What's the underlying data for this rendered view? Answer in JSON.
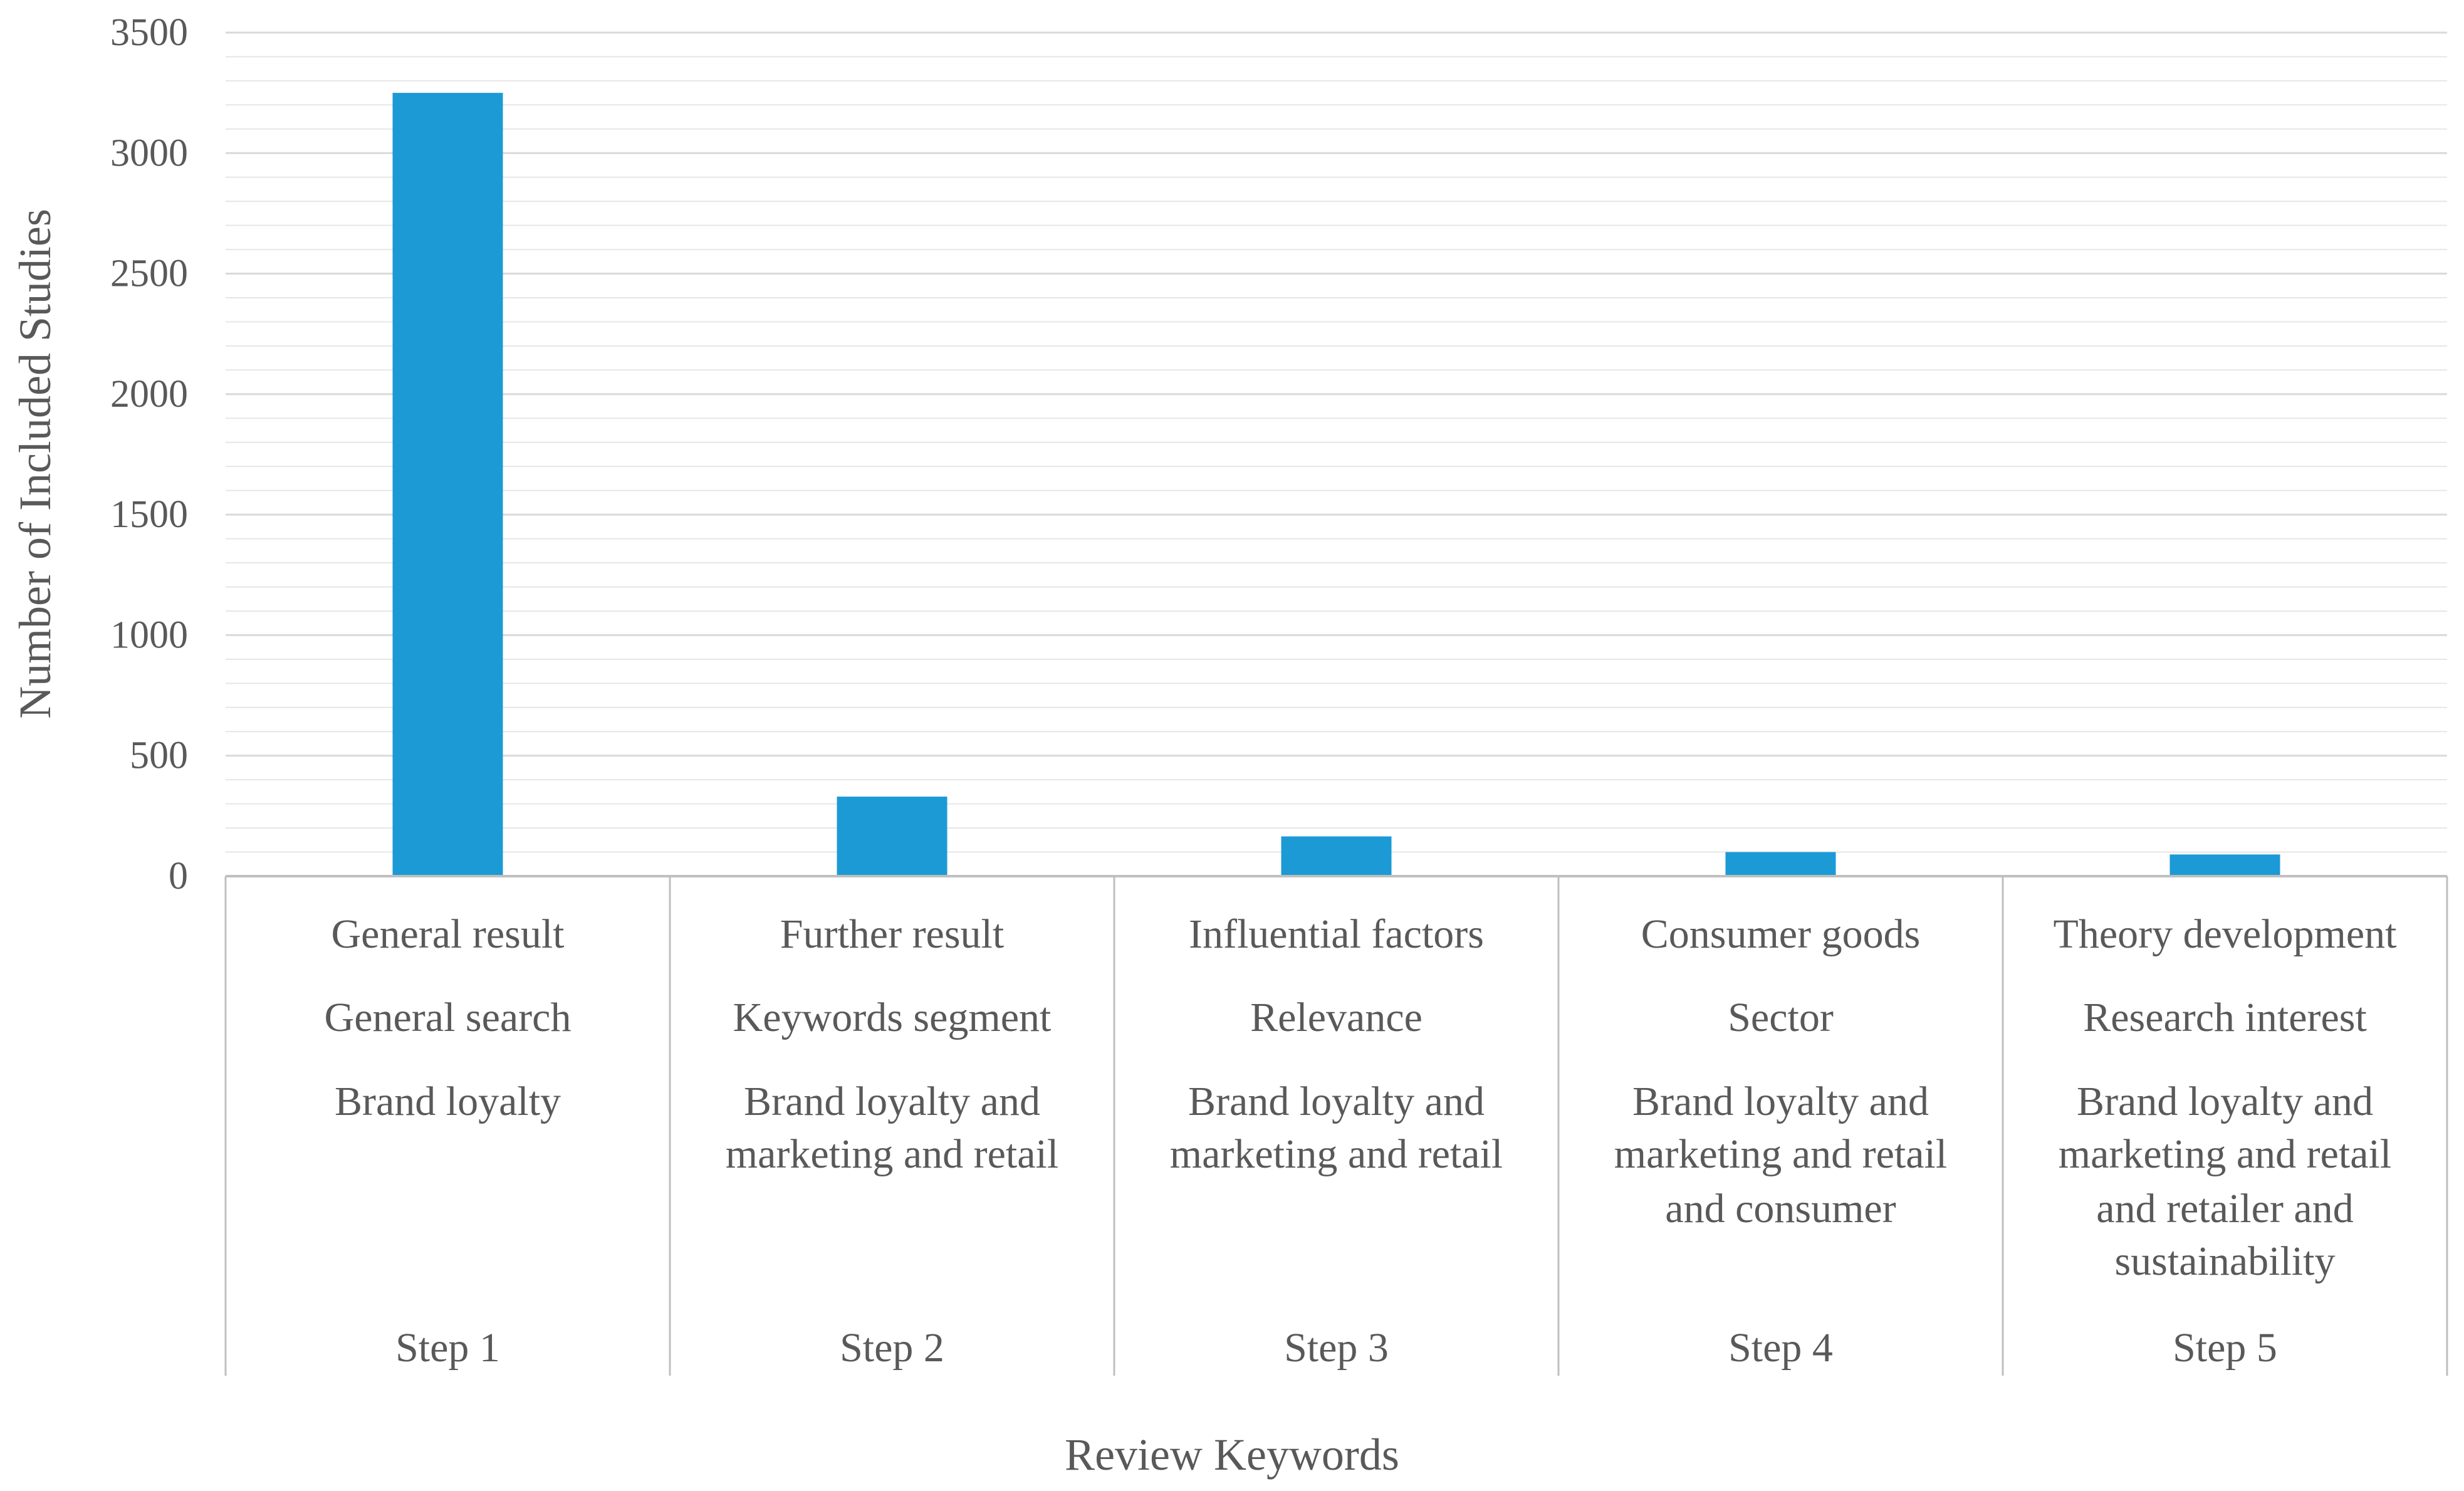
{
  "chart_data": {
    "type": "bar",
    "title": "",
    "xlabel": "Review Keywords",
    "ylabel": "Number of Included Studies",
    "ylim": [
      0,
      3500
    ],
    "yticks": [
      0,
      500,
      1000,
      1500,
      2000,
      2500,
      3000,
      3500
    ],
    "minor_gridline_step": 100,
    "grid": true,
    "legend": "none",
    "bar_color": "#1B9AD6",
    "categories": [
      {
        "group": "Step 1",
        "lines": [
          "General result",
          "General search",
          "Brand loyalty"
        ]
      },
      {
        "group": "Step 2",
        "lines": [
          "Further result",
          "Keywords segment",
          "Brand loyalty and",
          "marketing and retail"
        ]
      },
      {
        "group": "Step 3",
        "lines": [
          "Influential factors",
          "Relevance",
          "Brand loyalty and",
          "marketing and retail"
        ]
      },
      {
        "group": "Step 4",
        "lines": [
          "Consumer goods",
          "Sector",
          "Brand loyalty and",
          "marketing and retail",
          "and consumer"
        ]
      },
      {
        "group": "Step 5",
        "lines": [
          "Theory development",
          "Research interest",
          "Brand loyalty and",
          "marketing and retail",
          "and retailer and",
          "sustainability"
        ]
      }
    ],
    "values": [
      3250,
      330,
      165,
      100,
      90
    ]
  }
}
